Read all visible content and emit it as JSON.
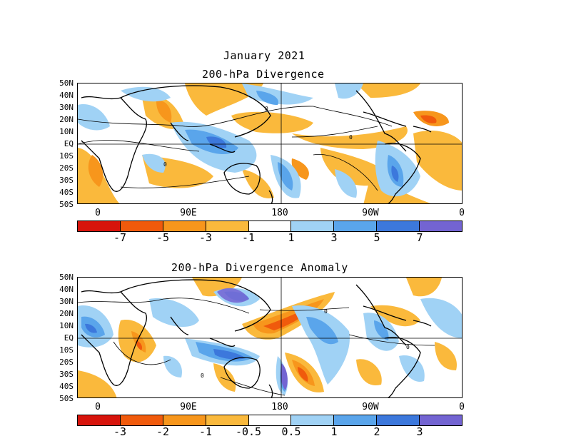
{
  "title": {
    "line1": "January 2021",
    "line2": "200-hPa Divergence",
    "anomaly_title": "200-hPa Divergence Anomaly"
  },
  "axes": {
    "lat_labels": [
      "50N",
      "40N",
      "30N",
      "20N",
      "10N",
      "EQ",
      "10S",
      "20S",
      "30S",
      "40S",
      "50S"
    ],
    "lon_labels": [
      "0",
      "90E",
      "180",
      "90W",
      "0"
    ]
  },
  "colorbar_top": {
    "colors": [
      "#d7140c",
      "#f05a0c",
      "#f7961c",
      "#fab93c",
      "#ffffff",
      "#a0d2f5",
      "#5aa5eb",
      "#3c78dc",
      "#7364d2"
    ],
    "labels": [
      "-7",
      "-5",
      "-3",
      "-1",
      "1",
      "3",
      "5",
      "7"
    ]
  },
  "colorbar_bottom": {
    "colors": [
      "#d7140c",
      "#f05a0c",
      "#f7961c",
      "#fab93c",
      "#ffffff",
      "#a0d2f5",
      "#5aa5eb",
      "#3c78dc",
      "#7364d2"
    ],
    "labels": [
      "-3",
      "-2",
      "-1",
      "-0.5",
      "0.5",
      "1",
      "2",
      "3"
    ]
  },
  "contour_label": "0"
}
